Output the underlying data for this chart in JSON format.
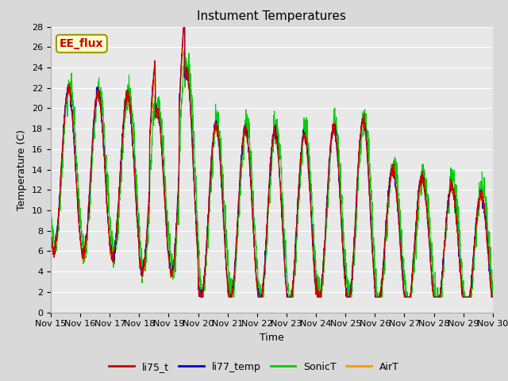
{
  "title": "Instument Temperatures",
  "xlabel": "Time",
  "ylabel": "Temperature (C)",
  "ylim": [
    0,
    28
  ],
  "yticks": [
    0,
    2,
    4,
    6,
    8,
    10,
    12,
    14,
    16,
    18,
    20,
    22,
    24,
    26,
    28
  ],
  "x_tick_labels": [
    "Nov 15",
    "Nov 16",
    "Nov 17",
    "Nov 18",
    "Nov 19",
    "Nov 20",
    "Nov 21",
    "Nov 22",
    "Nov 23",
    "Nov 24",
    "Nov 25",
    "Nov 26",
    "Nov 27",
    "Nov 28",
    "Nov 29",
    "Nov 30"
  ],
  "series": {
    "li75_t": {
      "color": "#cc0000",
      "label": "li75_t"
    },
    "li77_temp": {
      "color": "#0000cc",
      "label": "li77_temp"
    },
    "SonicT": {
      "color": "#00cc00",
      "label": "SonicT"
    },
    "AirT": {
      "color": "#ff9900",
      "label": "AirT"
    }
  },
  "annotation_text": "EE_flux",
  "annotation_color": "#cc0000",
  "annotation_bg": "#ffffcc",
  "annotation_edgecolor": "#999900",
  "fig_facecolor": "#d9d9d9",
  "plot_facecolor": "#e8e8e8",
  "grid_color": "#ffffff",
  "title_fontsize": 11,
  "axis_fontsize": 9,
  "tick_fontsize": 8,
  "legend_fontsize": 9,
  "linewidth": 0.8
}
